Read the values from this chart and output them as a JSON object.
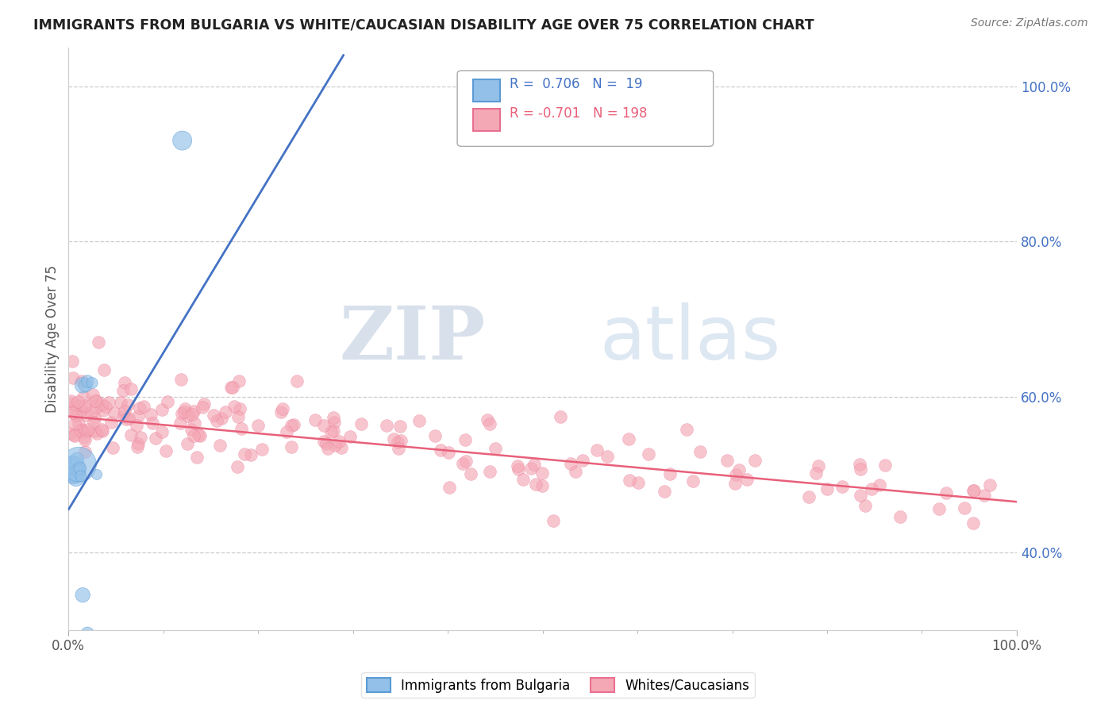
{
  "title": "IMMIGRANTS FROM BULGARIA VS WHITE/CAUCASIAN DISABILITY AGE OVER 75 CORRELATION CHART",
  "source": "Source: ZipAtlas.com",
  "ylabel": "Disability Age Over 75",
  "watermark_zip": "ZIP",
  "watermark_atlas": "atlas",
  "legend_blue_label": "Immigrants from Bulgaria",
  "legend_pink_label": "Whites/Caucasians",
  "R_blue": 0.706,
  "N_blue": 19,
  "R_pink": -0.701,
  "N_pink": 198,
  "blue_color": "#92C0E8",
  "blue_edge_color": "#5B9BD5",
  "pink_color": "#F4A7B5",
  "pink_edge_color": "#E87090",
  "blue_line_color": "#4472C4",
  "pink_line_color": "#E8607A",
  "xlim": [
    0.0,
    1.0
  ],
  "ylim_data": [
    0.3,
    1.05
  ],
  "yticks_right": [
    0.4,
    0.6,
    0.8,
    1.0
  ],
  "ytick_right_labels": [
    "40.0%",
    "60.0%",
    "80.0%",
    "100.0%"
  ],
  "grid_lines": [
    0.4,
    0.6,
    0.8,
    1.0
  ],
  "blue_line_x0": 0.0,
  "blue_line_y0": 0.455,
  "blue_line_x1": 0.29,
  "blue_line_y1": 1.04,
  "pink_line_x0": 0.0,
  "pink_line_y0": 0.575,
  "pink_line_x1": 1.0,
  "pink_line_y1": 0.465
}
